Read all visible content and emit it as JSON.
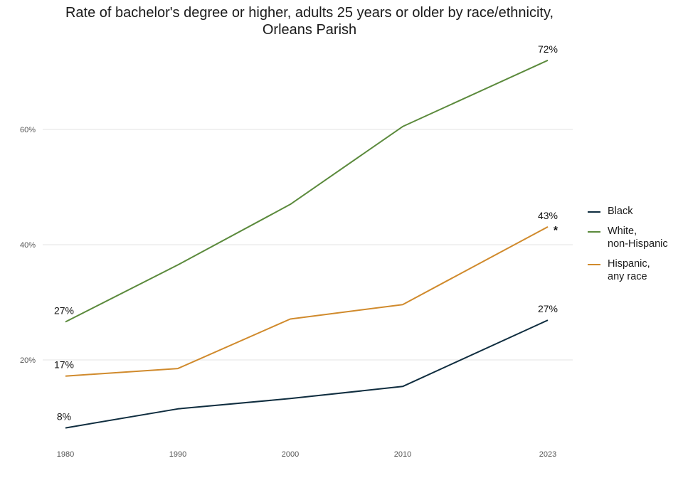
{
  "chart_data": {
    "type": "line",
    "title": "Rate of bachelor's degree or higher, adults 25 years or older by race/ethnicity,\nOrleans Parish",
    "categories": [
      "1980",
      "1990",
      "2000",
      "2010",
      "2023"
    ],
    "yticks": [
      "20%",
      "40%",
      "60%"
    ],
    "ytick_values": [
      20,
      40,
      60
    ],
    "ylim": [
      7,
      74
    ],
    "grid": "horizontal",
    "legend_position": "right",
    "series": [
      {
        "name": "Black",
        "color": "#0f2d3f",
        "values": [
          8.2,
          11.5,
          13.3,
          15.4,
          26.9
        ],
        "labels": [
          "8%",
          "",
          "",
          "",
          "27%"
        ]
      },
      {
        "name": "White,\nnon-Hispanic",
        "color": "#5b8a3c",
        "values": [
          26.6,
          36.5,
          47.0,
          60.5,
          72.0
        ],
        "labels": [
          "27%",
          "",
          "",
          "",
          "72%"
        ]
      },
      {
        "name": "Hispanic,\nany race",
        "color": "#d08a2c",
        "values": [
          17.2,
          18.5,
          27.1,
          29.6,
          43.1
        ],
        "labels": [
          "17%",
          "",
          "",
          "",
          "43%"
        ]
      }
    ],
    "annotation": "*"
  }
}
